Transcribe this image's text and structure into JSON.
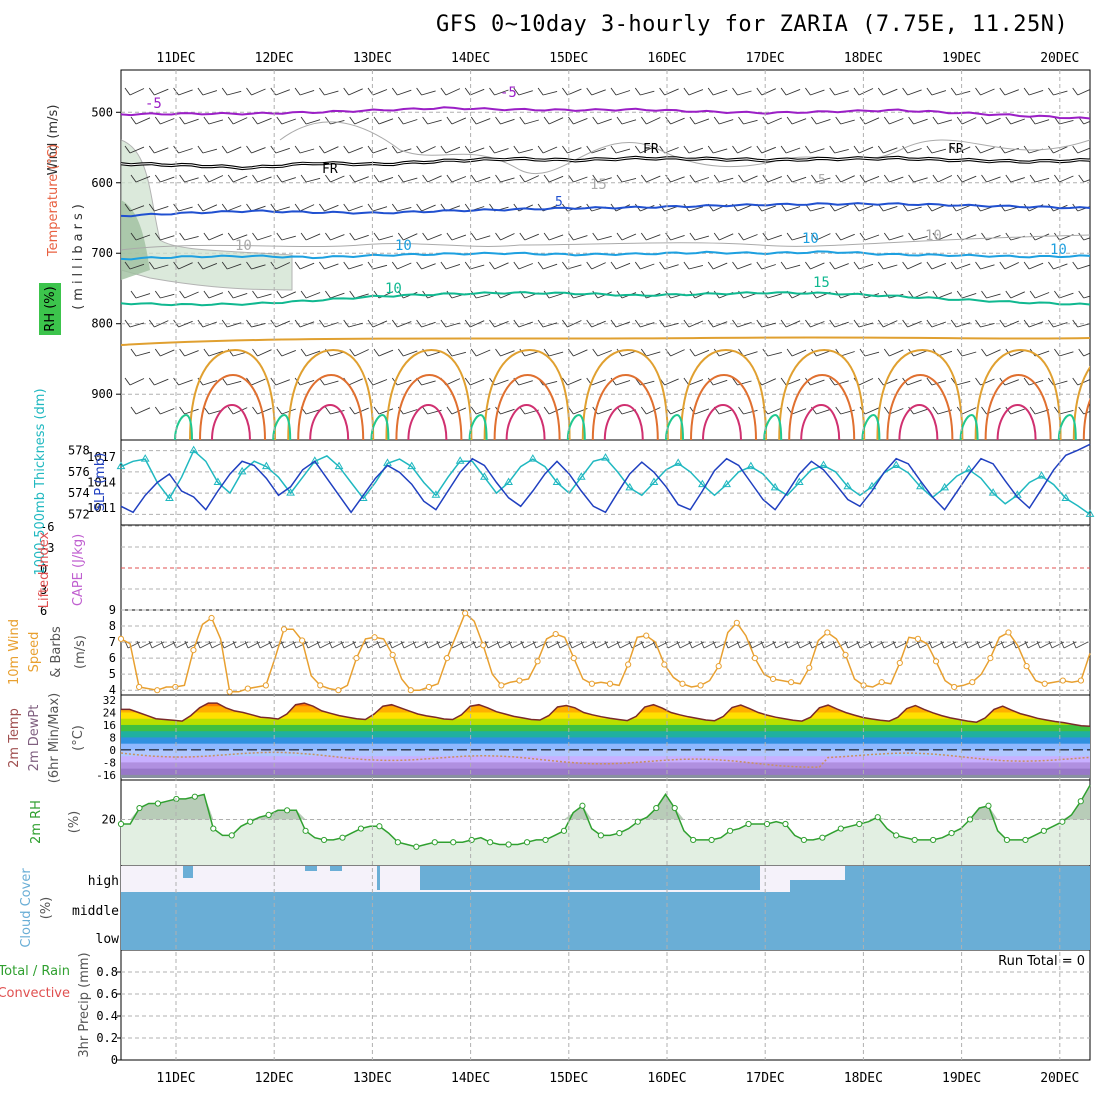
{
  "title": "GFS 0~10day 3-hourly for ZARIA (7.75E, 11.25N)",
  "chart_data": {
    "type": "meteogram",
    "x_labels": [
      "11DEC",
      "12DEC",
      "13DEC",
      "14DEC",
      "15DEC",
      "16DEC",
      "17DEC",
      "18DEC",
      "19DEC",
      "20DEC"
    ],
    "upper_panel": {
      "labels": {
        "wind": "Wind (m/s)",
        "temp": "Temperature (°C)",
        "rh": "RH (%)",
        "pressure": "(millibars)"
      },
      "y_ticks": [
        500,
        600,
        700,
        800,
        900
      ],
      "ylim": [
        440,
        965
      ],
      "contour_labels": [
        "-5",
        "-5",
        "FR",
        "FR",
        "FR",
        "5",
        "5",
        "10",
        "10",
        "10",
        "15",
        "15",
        "10",
        "10",
        "10"
      ],
      "isotherms": [
        {
          "name": "-5",
          "color": "#9b1fc6",
          "base": 503,
          "values": [
            503,
            502,
            502,
            500,
            497,
            494,
            496,
            497,
            496,
            499,
            501,
            499,
            497,
            501,
            505,
            509
          ]
        },
        {
          "name": "FR",
          "color": "#000000",
          "base": 573,
          "values": [
            573,
            575,
            579,
            572,
            574,
            569,
            566,
            568,
            565,
            566,
            568,
            566,
            565,
            568,
            570,
            568
          ]
        },
        {
          "name": "5",
          "color": "#2050d0",
          "base": 642,
          "values": [
            647,
            643,
            640,
            642,
            643,
            640,
            638,
            636,
            635,
            633,
            631,
            630,
            630,
            632,
            634,
            636
          ]
        },
        {
          "name": "10",
          "color": "#1da0e0",
          "base": 707,
          "values": [
            708,
            705,
            704,
            706,
            703,
            701,
            700,
            702,
            701,
            699,
            700,
            698,
            702,
            703,
            705,
            704
          ]
        },
        {
          "name": "15",
          "color": "#10b890",
          "base": 770,
          "values": [
            771,
            773,
            772,
            767,
            761,
            758,
            756,
            757,
            760,
            758,
            756,
            757,
            761,
            766,
            770,
            773
          ]
        }
      ]
    },
    "thickness_slp": {
      "left_label": "1000-500mb Thickness (dm)",
      "right_label": "SLP (mb)",
      "thickness_ticks": [
        572,
        574,
        576,
        578
      ],
      "slp_ticks": [
        1011,
        1014,
        1017
      ],
      "thickness": [
        576.5,
        577,
        577.2,
        575,
        573.5,
        575.5,
        578,
        577,
        575,
        574,
        576,
        577,
        576.5,
        575.5,
        574,
        575.5,
        577,
        577.5,
        576.5,
        575,
        573.5,
        575,
        576.8,
        577.2,
        576.5,
        575,
        573.8,
        575.5,
        577,
        577,
        575.5,
        574,
        575,
        576.5,
        577.2,
        576.5,
        575,
        574,
        575.5,
        577,
        577.3,
        576,
        574.5,
        573.8,
        575,
        576.2,
        576.8,
        576,
        574.8,
        573.8,
        574.8,
        576,
        576.5,
        575.8,
        574.5,
        573.8,
        575,
        576.2,
        576.6,
        576,
        574.6,
        573.8,
        574.6,
        575.9,
        576.6,
        575.9,
        574.6,
        573.6,
        574.5,
        575.6,
        576.2,
        575.4,
        574,
        573,
        573.8,
        575,
        575.6,
        574.8,
        573.5,
        572.8,
        572
      ],
      "slp": [
        1011.2,
        1010.5,
        1012.5,
        1014,
        1015,
        1013,
        1012.3,
        1010.8,
        1013,
        1015,
        1016.5,
        1016,
        1014.5,
        1012.5,
        1013.5,
        1015.5,
        1016.5,
        1014.5,
        1012.5,
        1010.5,
        1012.5,
        1014.5,
        1016,
        1015.2,
        1013.8,
        1011.8,
        1010.8,
        1013,
        1015.2,
        1016.8,
        1016,
        1014,
        1012.2,
        1011.2,
        1013,
        1015,
        1016.5,
        1015,
        1013,
        1011.2,
        1010.5,
        1012.8,
        1015,
        1016.4,
        1015.2,
        1013.5,
        1011.4,
        1010.8,
        1013,
        1015.4,
        1016.8,
        1016,
        1014,
        1012,
        1010.8,
        1012.8,
        1015,
        1016.5,
        1015.5,
        1013.8,
        1012,
        1011.2,
        1013,
        1015.2,
        1016.8,
        1016.2,
        1014.2,
        1012.3,
        1010.8,
        1012.9,
        1015,
        1016.8,
        1016.2,
        1014.2,
        1012.3,
        1011,
        1013.2,
        1015.5,
        1017.2,
        1017.8,
        1018.5
      ]
    },
    "stability": {
      "li_label": "Lifted Index",
      "cape_label": "CAPE (J/kg)",
      "li_ticks": [
        "-6",
        "-3",
        "0",
        "3",
        "6"
      ]
    },
    "wind10m": {
      "label1": "10m Wind",
      "label2": "Speed",
      "label3": "& Barbs",
      "unit": "(m/s)",
      "ticks": [
        4,
        5,
        6,
        7,
        8,
        9
      ],
      "speed": [
        7.2,
        6.9,
        4.2,
        4.1,
        4.0,
        4.2,
        4.2,
        4.3,
        6.5,
        8.1,
        8.5,
        7.2,
        3.9,
        3.9,
        4.1,
        4.2,
        4.3,
        6.0,
        7.8,
        7.8,
        7.1,
        4.9,
        4.3,
        4.1,
        4.0,
        4.3,
        6.0,
        7.2,
        7.3,
        7.2,
        6.2,
        4.7,
        4.0,
        4.0,
        4.2,
        4.4,
        6.0,
        7.4,
        8.8,
        8.3,
        6.8,
        5.0,
        4.3,
        4.5,
        4.6,
        4.7,
        5.8,
        7.2,
        7.5,
        7.3,
        6.0,
        4.7,
        4.4,
        4.5,
        4.4,
        4.3,
        5.6,
        7.3,
        7.4,
        7.0,
        5.6,
        4.8,
        4.4,
        4.2,
        4.3,
        4.6,
        5.5,
        7.6,
        8.2,
        7.4,
        6.0,
        5.0,
        4.7,
        4.6,
        4.5,
        4.4,
        5.4,
        7.1,
        7.6,
        7.2,
        6.2,
        4.7,
        4.3,
        4.2,
        4.5,
        4.4,
        5.7,
        7.3,
        7.2,
        6.9,
        5.8,
        4.6,
        4.2,
        4.3,
        4.5,
        5.0,
        6.0,
        7.3,
        7.6,
        6.8,
        5.5,
        4.6,
        4.4,
        4.5,
        4.6,
        4.5,
        4.6,
        6.3
      ]
    },
    "temp2m": {
      "label1": "2m Temp",
      "label2": "2m DewPt",
      "label3": "(6hr Min/Max)",
      "unit": "(°C)",
      "ticks": [
        "32",
        "24",
        "16",
        "8",
        "0",
        "-8",
        "-16"
      ],
      "temp": [
        26,
        26,
        24,
        22,
        20,
        19.5,
        19,
        18.5,
        22,
        27,
        30,
        30,
        27,
        25,
        24,
        22.5,
        21,
        20.5,
        19.8,
        23,
        29,
        30,
        28,
        25,
        23.5,
        22,
        21,
        20,
        19.5,
        23,
        28,
        29,
        27,
        25,
        23,
        21.8,
        21,
        19.8,
        19.5,
        22.5,
        28,
        29,
        27,
        24.5,
        23,
        21.5,
        20.5,
        19.5,
        19.2,
        22,
        27.5,
        28.5,
        27,
        24,
        22.5,
        21.3,
        20.3,
        19.5,
        18.8,
        21.5,
        27.5,
        29,
        26.8,
        24,
        22.5,
        21.2,
        20.2,
        19.2,
        18.7,
        21.5,
        27.2,
        28.8,
        26.5,
        24,
        22.3,
        21,
        20,
        19,
        18.5,
        21,
        27,
        28.7,
        26.3,
        24,
        22.3,
        20.8,
        19.8,
        19,
        18.5,
        21,
        26.5,
        28.5,
        26,
        23.8,
        22,
        20.5,
        19.5,
        18.5,
        17.8,
        20.5,
        26,
        28,
        25.5,
        23.3,
        21.8,
        20.3,
        19.2,
        18.2,
        17.5,
        16.5,
        15.5,
        15.2
      ]
    },
    "rh2m": {
      "label": "2m RH",
      "unit": "(%)",
      "tick": "20",
      "values": [
        18,
        18,
        25,
        27,
        27,
        28,
        29,
        29,
        30,
        31,
        16,
        13,
        13,
        17,
        19,
        21,
        22,
        24,
        24,
        24,
        15,
        12,
        11,
        11,
        12,
        14,
        16,
        17,
        17,
        14,
        10,
        9,
        8,
        9,
        10,
        10,
        10,
        10,
        11,
        12,
        10,
        9,
        9,
        9,
        10,
        11,
        11,
        13,
        15,
        23,
        26,
        16,
        13,
        13,
        14,
        16,
        19,
        21,
        25,
        31,
        25,
        15,
        11,
        11,
        11,
        12,
        15,
        16,
        18,
        18,
        18,
        19,
        18,
        13,
        11,
        11,
        12,
        14,
        16,
        17,
        18,
        19,
        21,
        16,
        13,
        12,
        11,
        11,
        11,
        12,
        14,
        16,
        20,
        25,
        26,
        15,
        11,
        11,
        11,
        13,
        15,
        17,
        19,
        22,
        28,
        35
      ]
    },
    "cloud": {
      "label": "Cloud Cover",
      "unit": "(%)",
      "levels": [
        "high",
        "middle",
        "low"
      ]
    },
    "precip": {
      "label1": "Total / Rain",
      "label2": "Convective",
      "ylabel": "3hr Precip (mm)",
      "ticks": [
        "0",
        "0.2",
        "0.4",
        "0.6",
        "0.8"
      ],
      "run_total": "Run Total = 0"
    }
  },
  "colors": {
    "grid": "#b0b0b0",
    "thickness": "#20b8c0",
    "slp": "#2040c0",
    "wind_speed": "#e8a030",
    "rh": "#30a030",
    "rh_fill": "#c8dcc8",
    "cloud": "#6aaed6",
    "li": "#e05050"
  }
}
